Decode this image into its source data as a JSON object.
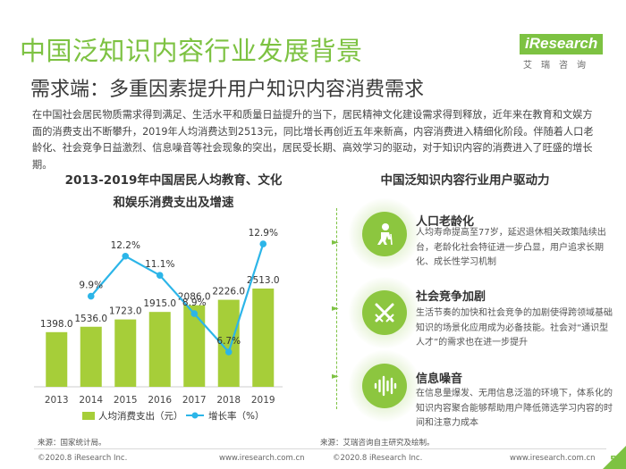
{
  "page": {
    "title": "中国泛知识内容行业发展背景",
    "subtitle": "需求端：多重因素提升用户知识内容消费需求",
    "intro": "在中国社会居民物质需求得到满足、生活水平和质量日益提升的当下，居民精神文化建设需求得到释放，近年来在教育和文娱方面的消费支出不断攀升，2019年人均消费达到2513元，同比增长再创近五年来新高，内容消费进入精细化阶段。伴随着人口老龄化、社会竞争日益激烈、信息噪音等社会现象的突出，居民受长期、高效学习的驱动，对于知识内容的消费进入了旺盛的增长期。",
    "page_number": "5"
  },
  "logo": {
    "name": "iResearch",
    "sub": "艾瑞咨询"
  },
  "chart_data": {
    "type": "bar",
    "title_line1": "2013-2019年中国居民人均教育、文化",
    "title_line2": "和娱乐消费支出及增速",
    "categories": [
      "2013",
      "2014",
      "2015",
      "2016",
      "2017",
      "2018",
      "2019"
    ],
    "series": [
      {
        "name": "人均消费支出（元）",
        "type": "bar",
        "values": [
          1398.0,
          1536.0,
          1723.0,
          1915.0,
          2086.0,
          2226.0,
          2513.0
        ],
        "value_labels": [
          "1398.0",
          "1536.0",
          "1723.0",
          "1915.0",
          "2086.0",
          "2226.0",
          "2513.0"
        ]
      },
      {
        "name": "增长率（%）",
        "type": "line",
        "values": [
          null,
          9.9,
          12.2,
          11.1,
          8.9,
          6.7,
          12.9
        ],
        "value_labels": [
          "",
          "9.9%",
          "12.2%",
          "11.1%",
          "8.9%",
          "6.7%",
          "12.9%"
        ]
      }
    ],
    "colors": {
      "bar": "#a6ce39",
      "line": "#2cb5e8"
    },
    "legend_position": "bottom",
    "grid": false
  },
  "drivers": {
    "title": "中国泛知识内容行业用户驱动力",
    "items": [
      {
        "title": "人口老龄化",
        "icon": "elderly-icon",
        "desc": "人均寿命提高至77岁，延迟退休相关政策陆续出台，老龄化社会特征进一步凸显，用户追求长期化、成长性学习机制"
      },
      {
        "title": "社会竞争加剧",
        "icon": "crossed-swords-icon",
        "desc": "生活节奏的加快和社会竞争的加剧使得跨领域基础知识的场景化应用成为必备技能。社会对“通识型人才”的需求也在进一步提升"
      },
      {
        "title": "信息噪音",
        "icon": "sound-wave-icon",
        "desc": "在信息量爆发、无用信息泛滥的环境下，体系化的知识内容聚合能够帮助用户降低筛选学习内容的时间和注意力成本"
      }
    ]
  },
  "sources": {
    "left": "来源：国家统计局。",
    "right": "来源：艾瑞咨询自主研究及绘制。"
  },
  "footer": {
    "left_copyright": "©2020.8 iResearch Inc.",
    "left_url": "www.iresearch.com.cn",
    "right_copyright": "©2020.8 iResearch Inc.",
    "right_url": "www.iresearch.com.cn"
  }
}
